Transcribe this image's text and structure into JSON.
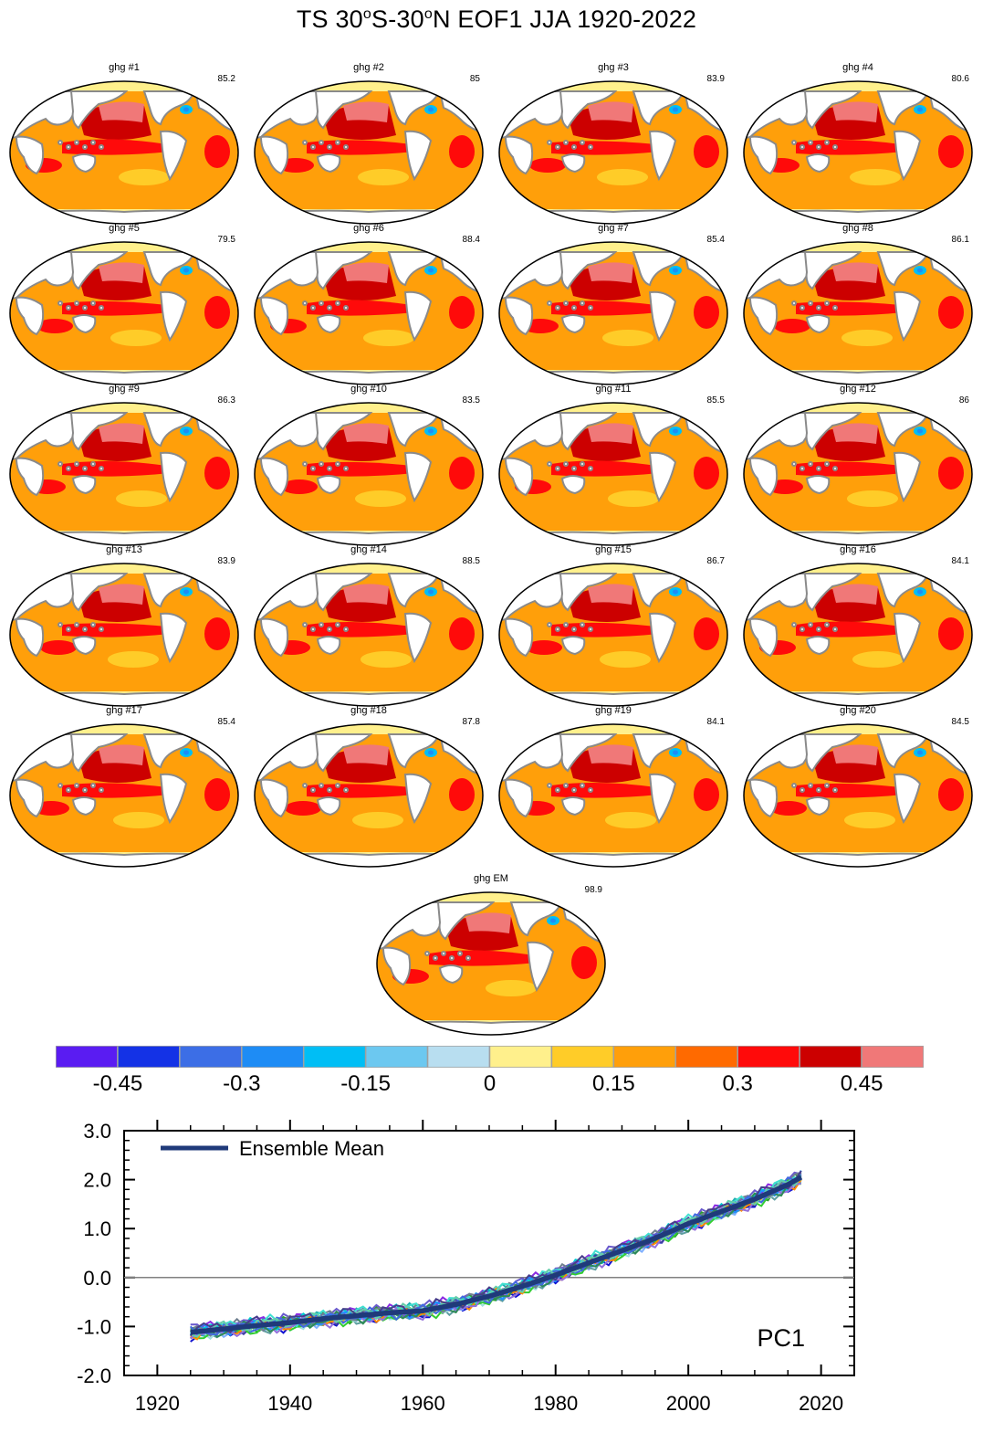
{
  "title": {
    "pre": "TS 30",
    "o1": "o",
    "mid": "S-30",
    "o2": "o",
    "post": "N EOF1 JJA 1920-2022"
  },
  "colors": {
    "land": "#ffffff",
    "coast": "#8a8a8a",
    "levels": [
      "#5a1cf2",
      "#1432e6",
      "#3c6ee6",
      "#1e8cf5",
      "#00bef5",
      "#6cc8f0",
      "#b8def0",
      "#fff08c",
      "#ffcc28",
      "#ff9f0a",
      "#ff6a00",
      "#ff0a0a",
      "#cc0000",
      "#f07878"
    ]
  },
  "panels": [
    {
      "title": "ghg #1",
      "var": "85.2"
    },
    {
      "title": "ghg #2",
      "var": "85"
    },
    {
      "title": "ghg #3",
      "var": "83.9"
    },
    {
      "title": "ghg #4",
      "var": "80.6"
    },
    {
      "title": "ghg #5",
      "var": "79.5"
    },
    {
      "title": "ghg #6",
      "var": "88.4"
    },
    {
      "title": "ghg #7",
      "var": "85.4"
    },
    {
      "title": "ghg #8",
      "var": "86.1"
    },
    {
      "title": "ghg #9",
      "var": "86.3"
    },
    {
      "title": "ghg #10",
      "var": "83.5"
    },
    {
      "title": "ghg #11",
      "var": "85.5"
    },
    {
      "title": "ghg #12",
      "var": "86"
    },
    {
      "title": "ghg #13",
      "var": "83.9"
    },
    {
      "title": "ghg #14",
      "var": "88.5"
    },
    {
      "title": "ghg #15",
      "var": "86.7"
    },
    {
      "title": "ghg #16",
      "var": "84.1"
    },
    {
      "title": "ghg #17",
      "var": "85.4"
    },
    {
      "title": "ghg #18",
      "var": "87.8"
    },
    {
      "title": "ghg #19",
      "var": "84.1"
    },
    {
      "title": "ghg #20",
      "var": "84.5"
    },
    {
      "title": "ghg EM",
      "var": "98.9"
    }
  ],
  "colorbar": {
    "labels": [
      "-0.45",
      "-0.3",
      "-0.15",
      "0",
      "0.15",
      "0.3",
      "0.45"
    ]
  },
  "chart_data": {
    "type": "line",
    "label": "PC1",
    "legend": {
      "entry": "Ensemble Mean",
      "placement": "top-left"
    },
    "xlim": [
      1915,
      2025
    ],
    "ylim": [
      -2.0,
      3.0
    ],
    "xticks": [
      "1920",
      "1940",
      "1960",
      "1980",
      "2000",
      "2020"
    ],
    "yticks": [
      "-2.0",
      "-1.0",
      "0.0",
      "1.0",
      "2.0",
      "3.0"
    ],
    "reference_line_y": 0,
    "ensemble_mean": {
      "color": "#1f3a7a",
      "x": [
        1925,
        1930,
        1935,
        1940,
        1945,
        1950,
        1955,
        1960,
        1965,
        1970,
        1975,
        1980,
        1985,
        1990,
        1995,
        2000,
        2005,
        2010,
        2015,
        2017
      ],
      "y": [
        -1.12,
        -1.05,
        -0.98,
        -0.92,
        -0.84,
        -0.78,
        -0.72,
        -0.68,
        -0.55,
        -0.38,
        -0.18,
        0.05,
        0.3,
        0.55,
        0.8,
        1.1,
        1.35,
        1.6,
        1.9,
        2.05
      ]
    },
    "members_color_set": [
      "#1010d0",
      "#7fb0ff",
      "#2aa02a",
      "#20b0b0",
      "#8a2be2",
      "#5f9ea0",
      "#9fe0e0",
      "#4040a0",
      "#00ced1",
      "#6a5acd",
      "#32cd32",
      "#ff8c00",
      "#1e90ff",
      "#708090",
      "#40e0d0",
      "#9370db",
      "#2e8b57",
      "#4169e1",
      "#66cdaa",
      "#483d8b"
    ]
  }
}
